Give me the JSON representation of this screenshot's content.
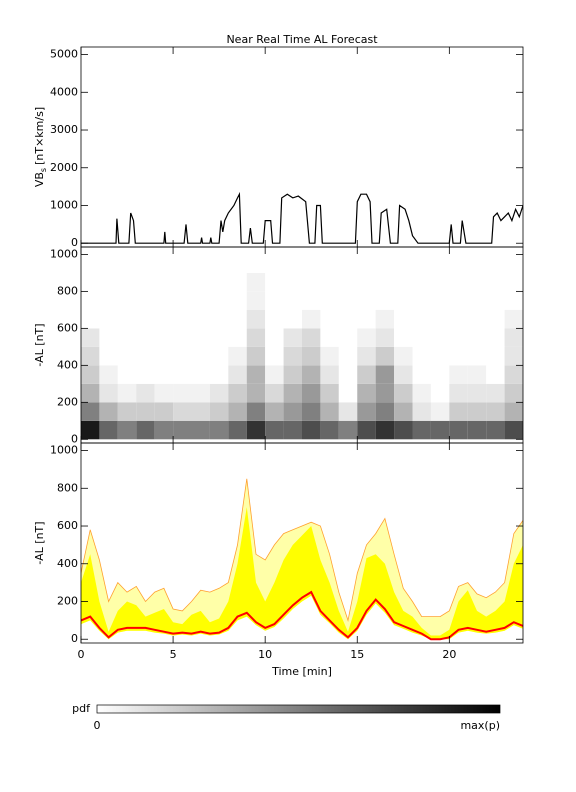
{
  "chart_data": [
    {
      "type": "line",
      "title": "Near Real Time AL Forecast",
      "ylabel": {
        "text": "VB",
        "sub": "s",
        "unit": "[nT×km/s]"
      },
      "xlim": [
        0,
        24
      ],
      "ylim": [
        -100,
        5200
      ],
      "yticks": [
        0,
        1000,
        2000,
        3000,
        4000,
        5000
      ],
      "x": [
        0,
        1.9,
        1.95,
        2.05,
        2.6,
        2.7,
        2.85,
        2.95,
        4.5,
        4.55,
        4.6,
        5.6,
        5.7,
        5.8,
        6.5,
        6.55,
        6.6,
        7.0,
        7.05,
        7.1,
        7.5,
        7.6,
        7.7,
        7.8,
        8.0,
        8.3,
        8.5,
        8.6,
        8.7,
        9.1,
        9.2,
        9.3,
        9.9,
        10.0,
        10.3,
        10.4,
        10.8,
        10.9,
        11.2,
        11.5,
        11.8,
        12.2,
        12.4,
        12.7,
        12.8,
        13.0,
        13.1,
        14.9,
        15.0,
        15.2,
        15.5,
        15.7,
        15.8,
        16.2,
        16.3,
        16.6,
        16.8,
        17.2,
        17.3,
        17.6,
        17.8,
        18.0,
        18.3,
        20.0,
        20.1,
        20.2,
        20.6,
        20.7,
        20.9,
        22.3,
        22.4,
        22.6,
        22.8,
        23.0,
        23.2,
        23.4,
        23.6,
        23.8,
        24.0
      ],
      "series": [
        {
          "color": "#000000",
          "values": [
            0,
            0,
            650,
            0,
            0,
            800,
            600,
            0,
            0,
            300,
            0,
            0,
            500,
            0,
            0,
            150,
            0,
            0,
            150,
            0,
            0,
            600,
            300,
            600,
            800,
            1000,
            1200,
            1300,
            0,
            0,
            400,
            0,
            0,
            600,
            600,
            0,
            0,
            1200,
            1300,
            1200,
            1250,
            1100,
            0,
            0,
            1000,
            1000,
            0,
            0,
            1100,
            1300,
            1300,
            1100,
            0,
            0,
            800,
            900,
            0,
            0,
            1000,
            900,
            600,
            200,
            0,
            0,
            500,
            0,
            0,
            600,
            0,
            0,
            700,
            800,
            600,
            700,
            800,
            600,
            900,
            700,
            1000
          ]
        }
      ]
    },
    {
      "type": "heatmap",
      "ylabel": "-AL [nT]",
      "xlim": [
        0,
        24
      ],
      "ylim": [
        -20,
        1040
      ],
      "yticks": [
        0,
        200,
        400,
        600,
        800,
        1000
      ],
      "xbins": [
        0,
        1,
        2,
        3,
        4,
        5,
        6,
        7,
        8,
        9,
        10,
        11,
        12,
        13,
        14,
        15,
        16,
        17,
        18,
        19,
        20,
        21,
        22,
        23,
        24
      ],
      "ybins": [
        0,
        100,
        200,
        300,
        400,
        500,
        600,
        700,
        800,
        900,
        1000
      ],
      "z": [
        [
          0.9,
          0.6,
          0.5,
          0.6,
          0.5,
          0.5,
          0.5,
          0.5,
          0.6,
          0.8,
          0.6,
          0.6,
          0.7,
          0.6,
          0.5,
          0.7,
          0.8,
          0.7,
          0.6,
          0.6,
          0.6,
          0.6,
          0.6,
          0.7
        ],
        [
          0.5,
          0.3,
          0.2,
          0.2,
          0.2,
          0.15,
          0.15,
          0.2,
          0.3,
          0.5,
          0.3,
          0.4,
          0.5,
          0.3,
          0.1,
          0.4,
          0.5,
          0.3,
          0.1,
          0.05,
          0.2,
          0.2,
          0.2,
          0.3
        ],
        [
          0.3,
          0.1,
          0.05,
          0.1,
          0.05,
          0.05,
          0.05,
          0.1,
          0.2,
          0.3,
          0.15,
          0.3,
          0.4,
          0.2,
          0,
          0.3,
          0.4,
          0.2,
          0.05,
          0,
          0.1,
          0.1,
          0.1,
          0.2
        ],
        [
          0.2,
          0.05,
          0,
          0,
          0,
          0,
          0,
          0,
          0.1,
          0.3,
          0.05,
          0.2,
          0.3,
          0.1,
          0,
          0.2,
          0.4,
          0.1,
          0,
          0,
          0.05,
          0.05,
          0,
          0.15
        ],
        [
          0.15,
          0,
          0,
          0,
          0,
          0,
          0,
          0,
          0.05,
          0.2,
          0,
          0.15,
          0.2,
          0.05,
          0,
          0.1,
          0.2,
          0.05,
          0,
          0,
          0,
          0,
          0,
          0.1
        ],
        [
          0.1,
          0,
          0,
          0,
          0,
          0,
          0,
          0,
          0,
          0.15,
          0,
          0.1,
          0.15,
          0,
          0,
          0.05,
          0.1,
          0,
          0,
          0,
          0,
          0,
          0,
          0.1
        ],
        [
          0,
          0,
          0,
          0,
          0,
          0,
          0,
          0,
          0,
          0.1,
          0,
          0,
          0.05,
          0,
          0,
          0,
          0.05,
          0,
          0,
          0,
          0,
          0,
          0,
          0.05
        ],
        [
          0,
          0,
          0,
          0,
          0,
          0,
          0,
          0,
          0,
          0.05,
          0,
          0,
          0,
          0,
          0,
          0,
          0,
          0,
          0,
          0,
          0,
          0,
          0,
          0
        ],
        [
          0,
          0,
          0,
          0,
          0,
          0,
          0,
          0,
          0,
          0.05,
          0,
          0,
          0,
          0,
          0,
          0,
          0,
          0,
          0,
          0,
          0,
          0,
          0,
          0
        ],
        [
          0,
          0,
          0,
          0,
          0,
          0,
          0,
          0,
          0,
          0,
          0,
          0,
          0,
          0,
          0,
          0,
          0,
          0,
          0,
          0,
          0,
          0,
          0,
          0
        ]
      ],
      "colorbar": {
        "label": "pdf",
        "min_label": 0,
        "max_label": "max(p)"
      }
    },
    {
      "type": "band",
      "ylabel": "-AL [nT]",
      "xlabel": "Time [min]",
      "xlim": [
        0,
        24
      ],
      "ylim": [
        -20,
        1040
      ],
      "yticks": [
        0,
        200,
        400,
        600,
        800,
        1000
      ],
      "xticks": [
        0,
        5,
        10,
        15,
        20
      ],
      "x": [
        0,
        0.5,
        1,
        1.5,
        2,
        2.5,
        3,
        3.5,
        4,
        4.5,
        5,
        5.5,
        6,
        6.5,
        7,
        7.5,
        8,
        8.5,
        9,
        9.5,
        10,
        10.5,
        11,
        11.5,
        12,
        12.5,
        13,
        13.5,
        14,
        14.5,
        15,
        15.5,
        16,
        16.5,
        17,
        17.5,
        18,
        18.5,
        19,
        19.5,
        20,
        20.5,
        21,
        21.5,
        22,
        22.5,
        23,
        23.5,
        24
      ],
      "lower": [
        80,
        100,
        45,
        0,
        35,
        45,
        45,
        45,
        35,
        30,
        20,
        25,
        20,
        30,
        20,
        25,
        45,
        100,
        120,
        75,
        45,
        65,
        110,
        160,
        200,
        230,
        130,
        85,
        35,
        0,
        45,
        130,
        190,
        140,
        75,
        55,
        35,
        20,
        0,
        0,
        0,
        35,
        45,
        35,
        30,
        35,
        45,
        75,
        55
      ],
      "bands": [
        {
          "color": "#ffffa8",
          "edge_color": "#ffa030",
          "upper": [
            350,
            580,
            420,
            200,
            300,
            250,
            280,
            200,
            250,
            270,
            160,
            150,
            200,
            260,
            250,
            270,
            300,
            500,
            850,
            450,
            420,
            500,
            560,
            580,
            600,
            620,
            600,
            450,
            250,
            100,
            350,
            500,
            560,
            640,
            450,
            270,
            200,
            120,
            120,
            120,
            150,
            280,
            300,
            240,
            220,
            250,
            300,
            560,
            630
          ]
        },
        {
          "color": "#ffff00",
          "upper": [
            300,
            450,
            200,
            40,
            150,
            200,
            180,
            120,
            140,
            160,
            90,
            80,
            130,
            150,
            90,
            110,
            200,
            400,
            700,
            300,
            200,
            300,
            420,
            500,
            550,
            600,
            420,
            300,
            150,
            40,
            200,
            430,
            450,
            400,
            250,
            150,
            120,
            60,
            20,
            20,
            50,
            200,
            260,
            150,
            120,
            150,
            200,
            400,
            500
          ]
        }
      ],
      "series": [
        {
          "color": "#ff0000",
          "values": [
            100,
            120,
            60,
            10,
            50,
            60,
            60,
            60,
            50,
            40,
            30,
            35,
            30,
            40,
            30,
            35,
            60,
            120,
            140,
            90,
            60,
            80,
            130,
            180,
            220,
            250,
            150,
            100,
            50,
            10,
            60,
            150,
            210,
            160,
            90,
            70,
            50,
            30,
            0,
            0,
            10,
            50,
            60,
            50,
            40,
            50,
            60,
            90,
            70
          ]
        }
      ]
    }
  ]
}
